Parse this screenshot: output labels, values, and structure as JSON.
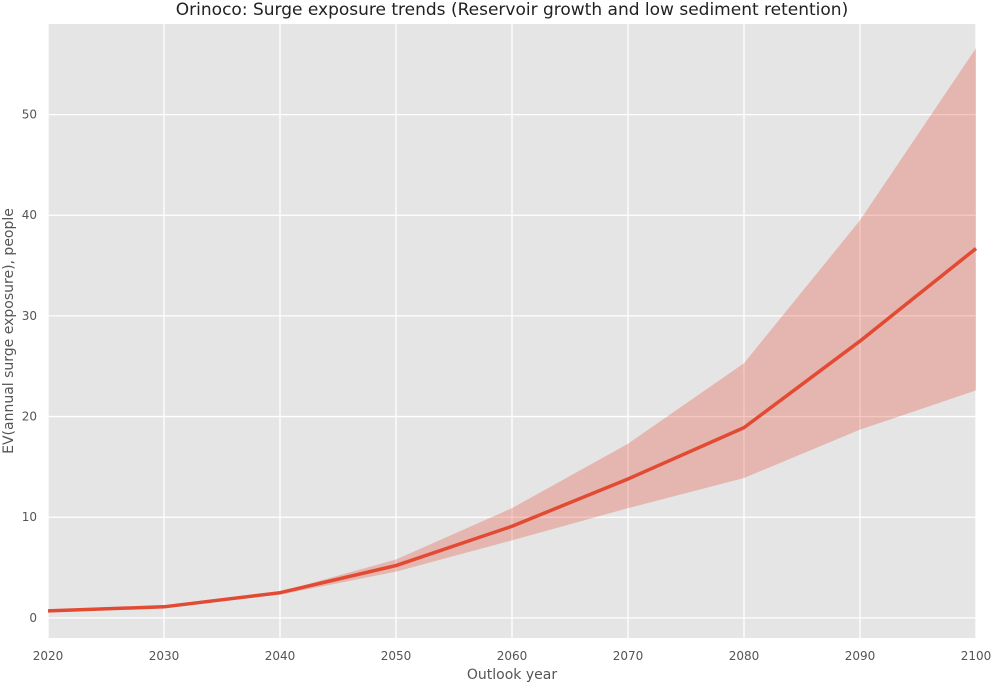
{
  "chart_data": {
    "type": "line",
    "title": "Orinoco: Surge exposure trends (Reservoir growth and low sediment retention)",
    "xlabel": "Outlook year",
    "ylabel": "EV(annual surge exposure), people",
    "x": [
      2020,
      2030,
      2040,
      2050,
      2060,
      2070,
      2080,
      2090,
      2100
    ],
    "series": [
      {
        "values": [
          0.7,
          1.1,
          2.5,
          5.2,
          9.1,
          13.8,
          18.9,
          27.5,
          36.7
        ],
        "lower": [
          0.7,
          1.1,
          2.3,
          4.6,
          7.7,
          10.9,
          13.9,
          18.7,
          22.6
        ],
        "upper": [
          0.7,
          1.1,
          2.6,
          5.8,
          10.9,
          17.3,
          25.3,
          39.5,
          56.6
        ],
        "color": "#e24a33",
        "band_color": "#e24a33"
      }
    ],
    "xlim": [
      2020,
      2100
    ],
    "ylim": [
      -2,
      59
    ],
    "xticks": [
      2020,
      2030,
      2040,
      2050,
      2060,
      2070,
      2080,
      2090,
      2100
    ],
    "yticks": [
      0,
      10,
      20,
      30,
      40,
      50
    ],
    "grid": true,
    "background": "#e5e5e5",
    "grid_color": "#ffffff"
  }
}
